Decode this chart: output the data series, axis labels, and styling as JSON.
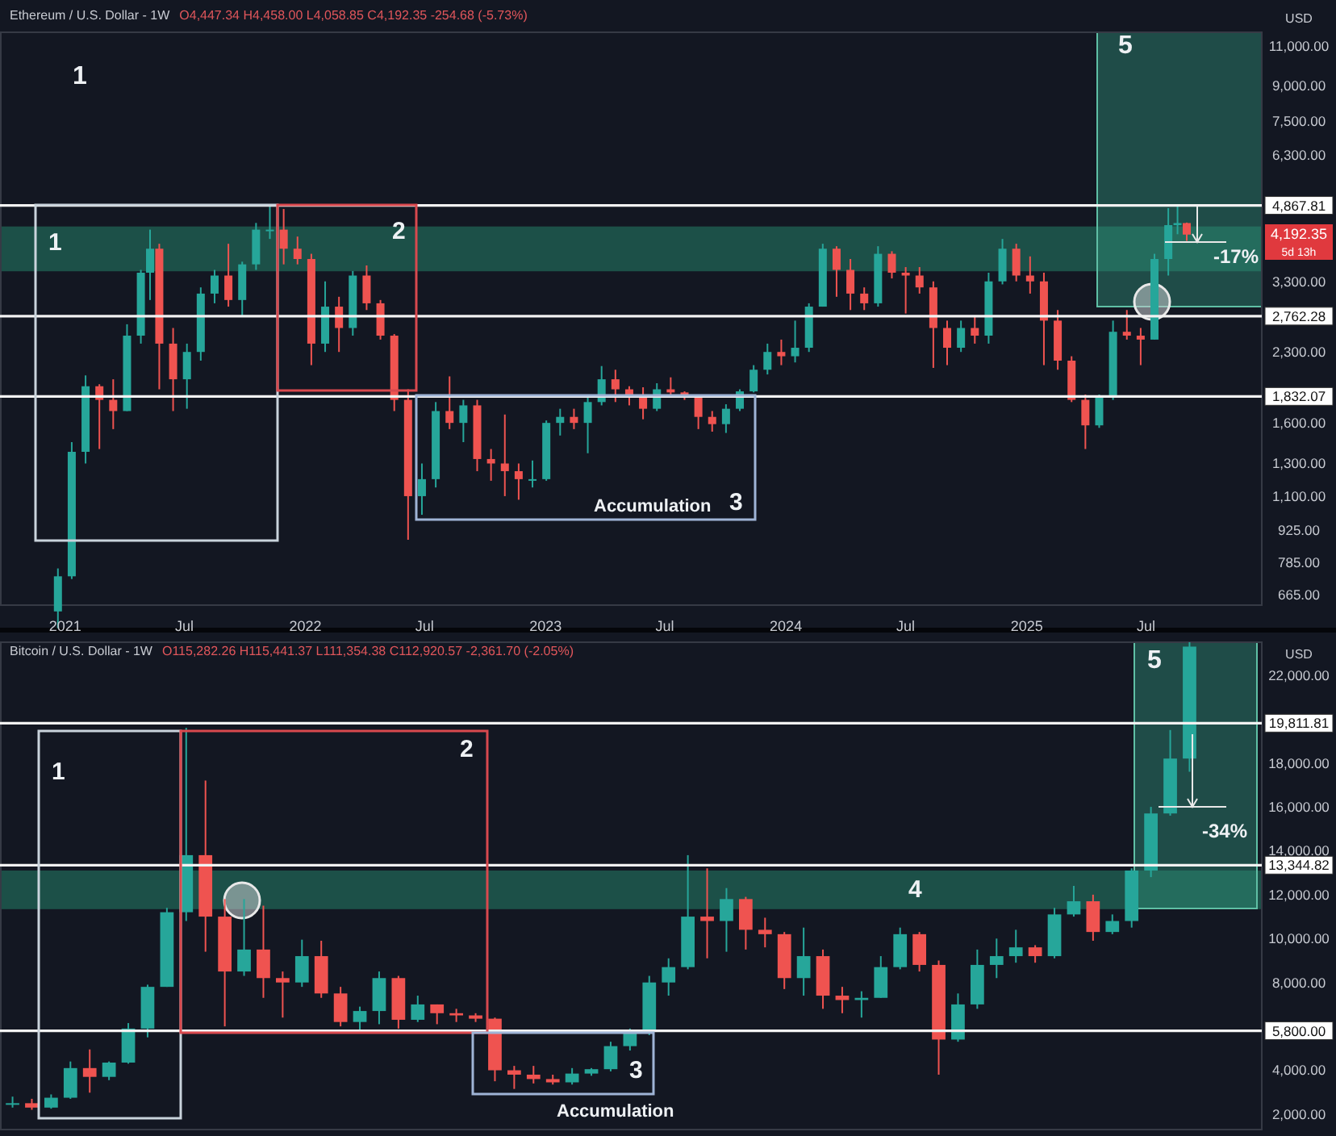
{
  "chart_data": [
    {
      "type": "candlestick",
      "title": "Ethereum / U.S. Dollar - 1W",
      "subtitle": "O4,447.34 H4,458.00 L4,058.85 C4,192.35 -254.68 (-5.73%)",
      "ylabel": "USD",
      "log": "y",
      "xlim": [
        "2020-09-24",
        "2025-12-24"
      ],
      "xticks": [
        {
          "value": "2021-01-01",
          "label": "2021"
        },
        {
          "value": "2021-07-01",
          "label": "Jul"
        },
        {
          "value": "2022-01-01",
          "label": "2022"
        },
        {
          "value": "2022-07-01",
          "label": "Jul"
        },
        {
          "value": "2023-01-01",
          "label": "2023"
        },
        {
          "value": "2023-07-01",
          "label": "Jul"
        },
        {
          "value": "2024-01-01",
          "label": "2024"
        },
        {
          "value": "2024-07-01",
          "label": "Jul"
        },
        {
          "value": "2025-01-01",
          "label": "2025"
        },
        {
          "value": "2025-07-01",
          "label": "Jul"
        }
      ],
      "ylim": [
        630,
        11800
      ],
      "yticks": [
        {
          "value": 665,
          "label": "665.00"
        },
        {
          "value": 785,
          "label": "785.00"
        },
        {
          "value": 925,
          "label": "925.00"
        },
        {
          "value": 1100,
          "label": "1,100.00"
        },
        {
          "value": 1300,
          "label": "1,300.00"
        },
        {
          "value": 1600,
          "label": "1,600.00"
        },
        {
          "value": 2300,
          "label": "2,300.00"
        },
        {
          "value": 3300,
          "label": "3,300.00"
        },
        {
          "value": 6300,
          "label": "6,300.00"
        },
        {
          "value": 7500,
          "label": "7,500.00"
        },
        {
          "value": 9000,
          "label": "9,000.00"
        },
        {
          "value": 11000,
          "label": "11,000.00"
        }
      ],
      "x": [
        "2020-12-21",
        "2021-01-11",
        "2021-02-01",
        "2021-02-22",
        "2021-03-15",
        "2021-04-05",
        "2021-04-26",
        "2021-05-10",
        "2021-05-24",
        "2021-06-14",
        "2021-07-05",
        "2021-07-26",
        "2021-08-16",
        "2021-09-06",
        "2021-09-27",
        "2021-10-18",
        "2021-11-08",
        "2021-11-29",
        "2021-12-20",
        "2022-01-10",
        "2022-01-31",
        "2022-02-21",
        "2022-03-14",
        "2022-04-04",
        "2022-04-25",
        "2022-05-16",
        "2022-06-06",
        "2022-06-27",
        "2022-07-18",
        "2022-08-08",
        "2022-08-29",
        "2022-09-19",
        "2022-10-10",
        "2022-10-31",
        "2022-11-21",
        "2022-12-12",
        "2023-01-02",
        "2023-01-23",
        "2023-02-13",
        "2023-03-06",
        "2023-03-27",
        "2023-04-17",
        "2023-05-08",
        "2023-05-29",
        "2023-06-19",
        "2023-07-10",
        "2023-07-31",
        "2023-08-21",
        "2023-09-11",
        "2023-10-02",
        "2023-10-23",
        "2023-11-13",
        "2023-12-04",
        "2023-12-25",
        "2024-01-15",
        "2024-02-05",
        "2024-02-26",
        "2024-03-18",
        "2024-04-08",
        "2024-04-29",
        "2024-05-20",
        "2024-06-10",
        "2024-07-01",
        "2024-07-22",
        "2024-08-12",
        "2024-09-02",
        "2024-09-23",
        "2024-10-14",
        "2024-11-04",
        "2024-11-25",
        "2024-12-16",
        "2025-01-06",
        "2025-01-27",
        "2025-02-17",
        "2025-03-10",
        "2025-03-31",
        "2025-04-21",
        "2025-05-12",
        "2025-06-02",
        "2025-06-23",
        "2025-07-14",
        "2025-08-04",
        "2025-08-18",
        "2025-09-01"
      ],
      "ohlc": [
        [
          610,
          760,
          560,
          730
        ],
        [
          730,
          1450,
          720,
          1380
        ],
        [
          1380,
          2040,
          1300,
          1930
        ],
        [
          1930,
          1950,
          1400,
          1800
        ],
        [
          1800,
          2000,
          1550,
          1700
        ],
        [
          1700,
          2650,
          1700,
          2500
        ],
        [
          2500,
          3500,
          2400,
          3450
        ],
        [
          3450,
          4300,
          3000,
          3900
        ],
        [
          3900,
          4000,
          1900,
          2400
        ],
        [
          2400,
          2600,
          1700,
          2000
        ],
        [
          2000,
          2400,
          1720,
          2300
        ],
        [
          2300,
          3200,
          2200,
          3100
        ],
        [
          3100,
          3500,
          2950,
          3400
        ],
        [
          3400,
          4000,
          2900,
          3000
        ],
        [
          3000,
          3650,
          2750,
          3600
        ],
        [
          3600,
          4450,
          3500,
          4300
        ],
        [
          4300,
          4860,
          4100,
          4300
        ],
        [
          4300,
          4780,
          3600,
          3900
        ],
        [
          3900,
          4150,
          3600,
          3700
        ],
        [
          3700,
          3800,
          2150,
          2400
        ],
        [
          2400,
          3300,
          2300,
          2900
        ],
        [
          2900,
          3050,
          2300,
          2600
        ],
        [
          2600,
          3480,
          2500,
          3400
        ],
        [
          3400,
          3580,
          2850,
          2950
        ],
        [
          2950,
          3000,
          2450,
          2500
        ],
        [
          2500,
          2520,
          1700,
          1800
        ],
        [
          1800,
          1900,
          880,
          1100
        ],
        [
          1100,
          1300,
          1000,
          1200
        ],
        [
          1200,
          1780,
          1150,
          1700
        ],
        [
          1700,
          2030,
          1550,
          1600
        ],
        [
          1600,
          1800,
          1450,
          1750
        ],
        [
          1750,
          1800,
          1250,
          1330
        ],
        [
          1330,
          1400,
          1190,
          1300
        ],
        [
          1300,
          1670,
          1100,
          1250
        ],
        [
          1250,
          1300,
          1080,
          1200
        ],
        [
          1200,
          1320,
          1150,
          1200
        ],
        [
          1200,
          1620,
          1190,
          1600
        ],
        [
          1600,
          1720,
          1500,
          1650
        ],
        [
          1650,
          1720,
          1550,
          1600
        ],
        [
          1600,
          1820,
          1370,
          1780
        ],
        [
          1780,
          2140,
          1750,
          2000
        ],
        [
          2000,
          2100,
          1780,
          1900
        ],
        [
          1900,
          1930,
          1750,
          1850
        ],
        [
          1850,
          1920,
          1630,
          1720
        ],
        [
          1720,
          1960,
          1700,
          1900
        ],
        [
          1900,
          2020,
          1850,
          1870
        ],
        [
          1870,
          1880,
          1800,
          1830
        ],
        [
          1830,
          1850,
          1550,
          1650
        ],
        [
          1650,
          1700,
          1530,
          1590
        ],
        [
          1590,
          1760,
          1520,
          1720
        ],
        [
          1720,
          1900,
          1700,
          1880
        ],
        [
          1880,
          2150,
          1870,
          2100
        ],
        [
          2100,
          2400,
          2050,
          2300
        ],
        [
          2300,
          2450,
          2150,
          2250
        ],
        [
          2250,
          2700,
          2180,
          2350
        ],
        [
          2350,
          2950,
          2300,
          2900
        ],
        [
          2900,
          4000,
          2900,
          3900
        ],
        [
          3900,
          3950,
          3050,
          3500
        ],
        [
          3500,
          3700,
          2850,
          3100
        ],
        [
          3100,
          3200,
          2850,
          2950
        ],
        [
          2950,
          3950,
          2900,
          3800
        ],
        [
          3800,
          3850,
          3350,
          3450
        ],
        [
          3450,
          3550,
          2800,
          3400
        ],
        [
          3400,
          3550,
          3100,
          3200
        ],
        [
          3200,
          3300,
          2120,
          2600
        ],
        [
          2600,
          2700,
          2150,
          2350
        ],
        [
          2350,
          2700,
          2300,
          2600
        ],
        [
          2600,
          2750,
          2400,
          2500
        ],
        [
          2500,
          3450,
          2400,
          3300
        ],
        [
          3300,
          4100,
          3250,
          3900
        ],
        [
          3900,
          4000,
          3300,
          3400
        ],
        [
          3400,
          3750,
          3100,
          3300
        ],
        [
          3300,
          3450,
          2150,
          2700
        ],
        [
          2700,
          2850,
          2100,
          2200
        ],
        [
          2200,
          2250,
          1780,
          1800
        ],
        [
          1800,
          1850,
          1400,
          1580
        ],
        [
          1580,
          1850,
          1560,
          1820
        ],
        [
          1820,
          2700,
          1800,
          2550
        ],
        [
          2550,
          2850,
          2450,
          2500
        ],
        [
          2500,
          2600,
          2150,
          2450
        ],
        [
          2450,
          3800,
          2450,
          3700
        ],
        [
          3700,
          4800,
          3400,
          4400
        ],
        [
          4400,
          4860,
          4200,
          4447.34
        ],
        [
          4447.34,
          4458,
          4058.85,
          4192.35
        ]
      ],
      "ref_lines": [
        {
          "axis": "y",
          "value": 4867.81,
          "label": "4,867.81"
        },
        {
          "axis": "y",
          "value": 2762.28,
          "label": "2,762.28"
        },
        {
          "axis": "y",
          "value": 1832.07,
          "label": "1,832.07"
        }
      ],
      "bands": [
        {
          "axis": "y",
          "from": 3475,
          "to": 4370,
          "color": "#1e5b4f"
        }
      ],
      "annotations": [
        "1",
        "1",
        "2",
        "Accumulation",
        "3",
        "5",
        "-17%",
        "4,192.35",
        "5d 13h"
      ]
    },
    {
      "type": "candlestick",
      "title": "Bitcoin / U.S. Dollar - 1W",
      "subtitle": "O115,282.26 H115,441.37 L111,354.38 C112,920.57 -2,361.70 (-2.05%)",
      "ylabel": "USD",
      "tick_labels": "y",
      "categories": [
        null,
        null,
        null,
        null,
        null,
        null,
        null,
        null,
        null,
        null,
        null,
        null,
        null,
        null,
        null,
        null,
        null,
        null,
        null,
        null,
        null,
        null,
        null,
        null,
        null,
        null,
        null,
        null,
        null,
        null,
        null,
        null,
        null,
        null,
        null,
        null,
        null,
        null,
        null,
        null,
        null,
        null,
        null,
        null,
        null,
        null,
        null,
        null,
        null,
        null,
        null,
        null,
        null,
        null,
        null,
        null,
        null,
        null,
        null,
        null,
        null,
        null
      ],
      "ylim": [
        1300,
        23500
      ],
      "yticks": [
        {
          "value": 2000,
          "label": "2,000.00"
        },
        {
          "value": 4000,
          "label": "4,000.00"
        },
        {
          "value": 8000,
          "label": "8,000.00"
        },
        {
          "value": 10000,
          "label": "10,000.00"
        },
        {
          "value": 12000,
          "label": "12,000.00"
        },
        {
          "value": 14000,
          "label": "14,000.00"
        },
        {
          "value": 16000,
          "label": "16,000.00"
        },
        {
          "value": 18000,
          "label": "18,000.00"
        },
        {
          "value": 22000,
          "label": "22,000.00"
        }
      ],
      "ohlc": [
        [
          2450,
          2800,
          2300,
          2500
        ],
        [
          2500,
          2700,
          2200,
          2300
        ],
        [
          2300,
          2900,
          2250,
          2750
        ],
        [
          2750,
          4400,
          2700,
          4100
        ],
        [
          4100,
          4950,
          2980,
          3700
        ],
        [
          3700,
          4400,
          3550,
          4350
        ],
        [
          4350,
          6150,
          4300,
          5900
        ],
        [
          5900,
          7900,
          5500,
          7800
        ],
        [
          7800,
          11400,
          7800,
          11200
        ],
        [
          11200,
          19600,
          10800,
          13800
        ],
        [
          13800,
          17200,
          9400,
          11000
        ],
        [
          11000,
          11800,
          6000,
          8500
        ],
        [
          8500,
          11800,
          8300,
          9500
        ],
        [
          9500,
          11500,
          7300,
          8200
        ],
        [
          8200,
          8500,
          6400,
          8000
        ],
        [
          8000,
          9950,
          7800,
          9200
        ],
        [
          9200,
          9900,
          7300,
          7500
        ],
        [
          7500,
          7800,
          6000,
          6200
        ],
        [
          6200,
          6900,
          5800,
          6700
        ],
        [
          6700,
          8500,
          6100,
          8200
        ],
        [
          8200,
          8300,
          5900,
          6300
        ],
        [
          6300,
          7400,
          6200,
          7000
        ],
        [
          7000,
          7000,
          6100,
          6600
        ],
        [
          6600,
          6800,
          6200,
          6500
        ],
        [
          6500,
          6600,
          6200,
          6350
        ],
        [
          6350,
          6400,
          3500,
          4000
        ],
        [
          4000,
          4200,
          3150,
          3800
        ],
        [
          3800,
          4200,
          3400,
          3600
        ],
        [
          3600,
          3800,
          3350,
          3450
        ],
        [
          3450,
          4100,
          3350,
          3850
        ],
        [
          3850,
          4100,
          3750,
          4050
        ],
        [
          4050,
          5300,
          3950,
          5100
        ],
        [
          5100,
          5900,
          4900,
          5800
        ],
        [
          5800,
          8300,
          5600,
          8000
        ],
        [
          8000,
          9100,
          7400,
          8700
        ],
        [
          8700,
          13800,
          8600,
          11000
        ],
        [
          11000,
          13200,
          9100,
          10800
        ],
        [
          10800,
          12300,
          9400,
          11800
        ],
        [
          11800,
          11900,
          9500,
          10400
        ],
        [
          10400,
          10950,
          9600,
          10200
        ],
        [
          10200,
          10300,
          7700,
          8200
        ],
        [
          8200,
          10500,
          7400,
          9200
        ],
        [
          9200,
          9500,
          6800,
          7400
        ],
        [
          7400,
          7800,
          6600,
          7200
        ],
        [
          7200,
          7600,
          6400,
          7300
        ],
        [
          7300,
          9200,
          7300,
          8700
        ],
        [
          8700,
          10500,
          8600,
          10200
        ],
        [
          10200,
          10300,
          8500,
          8800
        ],
        [
          8800,
          9000,
          3800,
          5400
        ],
        [
          5400,
          7500,
          5300,
          7000
        ],
        [
          7000,
          9500,
          6800,
          8800
        ],
        [
          8800,
          10000,
          8200,
          9200
        ],
        [
          9200,
          10400,
          8900,
          9600
        ],
        [
          9600,
          9700,
          8900,
          9200
        ],
        [
          9200,
          11400,
          9100,
          11100
        ],
        [
          11100,
          12400,
          11000,
          11700
        ],
        [
          11700,
          12000,
          9900,
          10300
        ],
        [
          10300,
          11100,
          10200,
          10800
        ],
        [
          10800,
          13200,
          10500,
          13100
        ],
        [
          13100,
          16000,
          12800,
          15700
        ],
        [
          15700,
          19500,
          15600,
          18200
        ],
        [
          18200,
          23500,
          17600,
          23300
        ]
      ],
      "ref_lines": [
        {
          "axis": "y",
          "value": 19811.81,
          "label": "19,811.81"
        },
        {
          "axis": "y",
          "value": 13344.82,
          "label": "13,344.82"
        },
        {
          "axis": "y",
          "value": 5800,
          "label": "5,800.00"
        }
      ],
      "bands": [
        {
          "axis": "y",
          "from": 11340,
          "to": 13100,
          "color": "#1e5b4f"
        }
      ],
      "annotations": [
        "1",
        "2",
        "3",
        "Accumulation",
        "4",
        "5",
        "-34%"
      ]
    }
  ]
}
